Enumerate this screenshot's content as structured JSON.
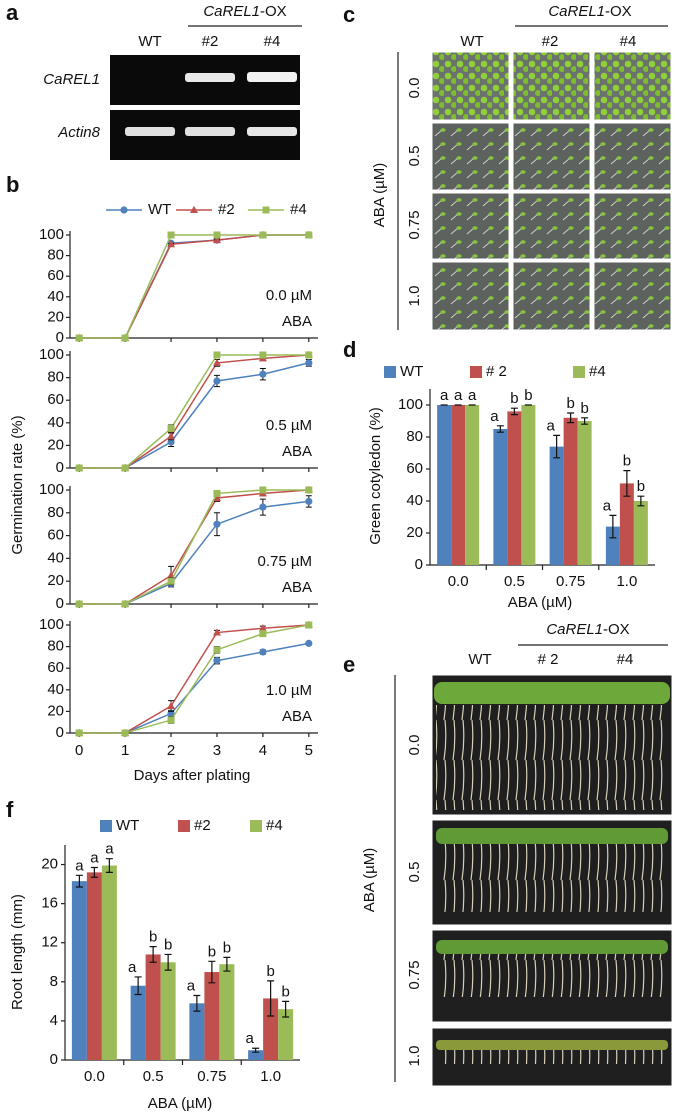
{
  "panel_a": {
    "label": "a",
    "genotype_label": {
      "gene": "CaREL1",
      "suffix": "-OX"
    },
    "lanes": [
      "WT",
      "#2",
      "#4"
    ],
    "rows": [
      "CaREL1",
      "Actin8"
    ]
  },
  "panel_c": {
    "label": "c",
    "genotype_label": {
      "gene": "CaREL1",
      "suffix": "-OX"
    },
    "columns": [
      "WT",
      "#2",
      "#4"
    ],
    "axis_label": "ABA (µM)",
    "rows": [
      "0.0",
      "0.5",
      "0.75",
      "1.0"
    ]
  },
  "panel_e": {
    "label": "e",
    "genotype_label": {
      "gene": "CaREL1",
      "suffix": "-OX"
    },
    "columns": [
      "WT",
      "# 2",
      "#4"
    ],
    "axis_label": "ABA (µM)",
    "rows": [
      "0.0",
      "0.5",
      "0.75",
      "1.0"
    ]
  },
  "chart_data": [
    {
      "type": "line",
      "panel_label": "b",
      "xlabel": "Days after plating",
      "ylabel": "Germination rate (%)",
      "legend": [
        {
          "name": "WT",
          "color": "#4f81bd",
          "marker": "circle"
        },
        {
          "name": "#2",
          "color": "#c0504d",
          "marker": "triangle"
        },
        {
          "name": "#4",
          "color": "#9bbb59",
          "marker": "square"
        }
      ],
      "x": [
        0,
        1,
        2,
        3,
        4,
        5
      ],
      "xlim": [
        -0.2,
        5.2
      ],
      "xticks": [
        0,
        1,
        2,
        3,
        4,
        5
      ],
      "ylim": [
        0,
        100
      ],
      "yticks": [
        0,
        20,
        40,
        60,
        80,
        100
      ],
      "subplots": [
        {
          "annotation": [
            "0.0 µM",
            "ABA"
          ],
          "series": [
            {
              "values": [
                0,
                0,
                92,
                95,
                100,
                100
              ],
              "errors": [
                0,
                0,
                1,
                1,
                0,
                0
              ]
            },
            {
              "values": [
                0,
                0,
                91,
                95,
                100,
                100
              ],
              "errors": [
                0,
                0,
                1,
                1,
                0,
                0
              ]
            },
            {
              "values": [
                0,
                0,
                100,
                100,
                100,
                100
              ],
              "errors": [
                0,
                0,
                0,
                0,
                0,
                0
              ]
            }
          ]
        },
        {
          "annotation": [
            "0.5 µM",
            "ABA"
          ],
          "series": [
            {
              "values": [
                0,
                0,
                23,
                77,
                83,
                93
              ],
              "errors": [
                0,
                0,
                4,
                5,
                5,
                3
              ]
            },
            {
              "values": [
                0,
                0,
                28,
                93,
                97,
                100
              ],
              "errors": [
                0,
                0,
                3,
                3,
                2,
                0
              ]
            },
            {
              "values": [
                0,
                0,
                35,
                100,
                100,
                100
              ],
              "errors": [
                0,
                0,
                3,
                0,
                0,
                0
              ]
            }
          ]
        },
        {
          "annotation": [
            "0.75 µM",
            "ABA"
          ],
          "series": [
            {
              "values": [
                0,
                0,
                18,
                70,
                85,
                90
              ],
              "errors": [
                0,
                0,
                3,
                10,
                7,
                5
              ]
            },
            {
              "values": [
                0,
                0,
                25,
                93,
                97,
                100
              ],
              "errors": [
                0,
                0,
                8,
                3,
                2,
                0
              ]
            },
            {
              "values": [
                0,
                0,
                20,
                97,
                100,
                100
              ],
              "errors": [
                0,
                0,
                3,
                2,
                0,
                0
              ]
            }
          ]
        },
        {
          "annotation": [
            "1.0 µM",
            "ABA"
          ],
          "series": [
            {
              "values": [
                0,
                0,
                18,
                67,
                75,
                83
              ],
              "errors": [
                0,
                0,
                3,
                3,
                2,
                1
              ]
            },
            {
              "values": [
                0,
                0,
                25,
                93,
                97,
                100
              ],
              "errors": [
                0,
                0,
                5,
                2,
                2,
                0
              ]
            },
            {
              "values": [
                0,
                0,
                12,
                77,
                92,
                100
              ],
              "errors": [
                0,
                0,
                3,
                3,
                2,
                0
              ]
            }
          ]
        }
      ]
    },
    {
      "type": "bar",
      "panel_label": "d",
      "xlabel": "ABA (µM)",
      "ylabel": "Green cotyledon (%)",
      "categories": [
        "0.0",
        "0.5",
        "0.75",
        "1.0"
      ],
      "ylim": [
        0,
        110
      ],
      "yticks": [
        0,
        20,
        40,
        60,
        80,
        100
      ],
      "series": [
        {
          "name": "WT",
          "color": "#4f81bd",
          "values": [
            100,
            85,
            74,
            24
          ],
          "errors": [
            0,
            2,
            7,
            7
          ],
          "letters": [
            "a",
            "a",
            "a",
            "a"
          ]
        },
        {
          "name": "# 2",
          "color": "#c0504d",
          "values": [
            100,
            96,
            92,
            51
          ],
          "errors": [
            0,
            2,
            3,
            8
          ],
          "letters": [
            "a",
            "b",
            "b",
            "b"
          ]
        },
        {
          "name": "#4",
          "color": "#9bbb59",
          "values": [
            100,
            100,
            90,
            40
          ],
          "errors": [
            0,
            0,
            2,
            3
          ],
          "letters": [
            "a",
            "b",
            "b",
            "b"
          ]
        }
      ]
    },
    {
      "type": "bar",
      "panel_label": "f",
      "xlabel": "ABA (µM)",
      "ylabel": "Root length (mm)",
      "categories": [
        "0.0",
        "0.5",
        "0.75",
        "1.0"
      ],
      "ylim": [
        0,
        22
      ],
      "yticks": [
        0,
        4,
        8,
        12,
        16,
        20
      ],
      "series": [
        {
          "name": "WT",
          "color": "#4f81bd",
          "values": [
            18.3,
            7.6,
            5.8,
            1.0
          ],
          "errors": [
            0.6,
            0.9,
            0.8,
            0.2
          ],
          "letters": [
            "a",
            "a",
            "a",
            "a"
          ]
        },
        {
          "name": "#2",
          "color": "#c0504d",
          "values": [
            19.2,
            10.8,
            9.0,
            6.3
          ],
          "errors": [
            0.5,
            0.8,
            1.1,
            1.8
          ],
          "letters": [
            "a",
            "b",
            "b",
            "b"
          ]
        },
        {
          "name": "#4",
          "color": "#9bbb59",
          "values": [
            19.9,
            10.0,
            9.8,
            5.2
          ],
          "errors": [
            0.7,
            0.8,
            0.7,
            0.8
          ],
          "letters": [
            "a",
            "b",
            "b",
            "b"
          ]
        }
      ]
    }
  ]
}
